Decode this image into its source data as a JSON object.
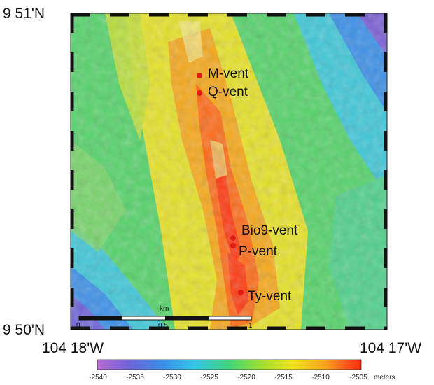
{
  "map": {
    "lat_top": "9 51'N",
    "lat_bottom": "9 50'N",
    "lon_left": "104 18'W",
    "lon_right": "104 17'W"
  },
  "vents": [
    {
      "name": "M-vent"
    },
    {
      "name": "Q-vent"
    },
    {
      "name": "Bio9-vent"
    },
    {
      "name": "P-vent"
    },
    {
      "name": "Ty-vent"
    }
  ],
  "scale_bar": {
    "unit": "km",
    "labels": [
      "0",
      "0.5",
      "1"
    ]
  },
  "colorbar": {
    "ticks": [
      "-2540",
      "-2535",
      "-2530",
      "-2525",
      "-2520",
      "-2515",
      "-2510",
      "-2505"
    ],
    "unit": "meters",
    "colors": [
      "#b86ad2",
      "#6f63d9",
      "#3a8fe8",
      "#30c8e8",
      "#3fd77a",
      "#9ee02f",
      "#f0e21d",
      "#f6a81a",
      "#ff5a17",
      "#ff2a10"
    ]
  },
  "vent_color": "#e01c14"
}
